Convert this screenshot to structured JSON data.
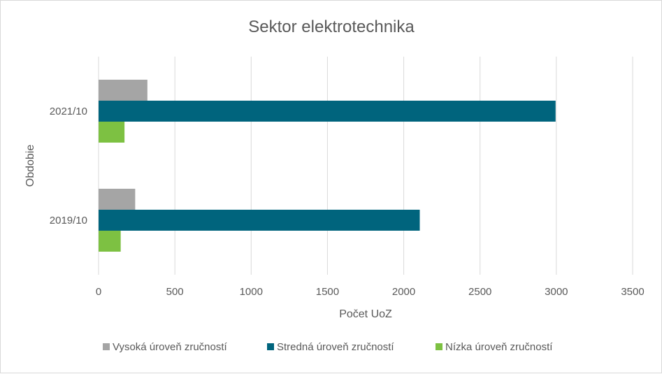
{
  "chart_data": {
    "type": "bar",
    "orientation": "horizontal",
    "title": "Sektor elektrotechnika",
    "xlabel": "Počet UoZ",
    "ylabel": "Obdobie",
    "categories": [
      "2019/10",
      "2021/10"
    ],
    "series": [
      {
        "name": "Vysoká úroveň zručností",
        "values": [
          240,
          320
        ],
        "color": "#a5a5a5"
      },
      {
        "name": "Stredná úroveň zručností",
        "values": [
          2105,
          2995
        ],
        "color": "#00647d"
      },
      {
        "name": "Nízka úroveň zručností",
        "values": [
          145,
          170
        ],
        "color": "#7dc142"
      }
    ],
    "xlim": [
      0,
      3500
    ],
    "xticks": [
      0,
      500,
      1000,
      1500,
      2000,
      2500,
      3000,
      3500
    ],
    "grid": true,
    "legend": "bottom"
  }
}
